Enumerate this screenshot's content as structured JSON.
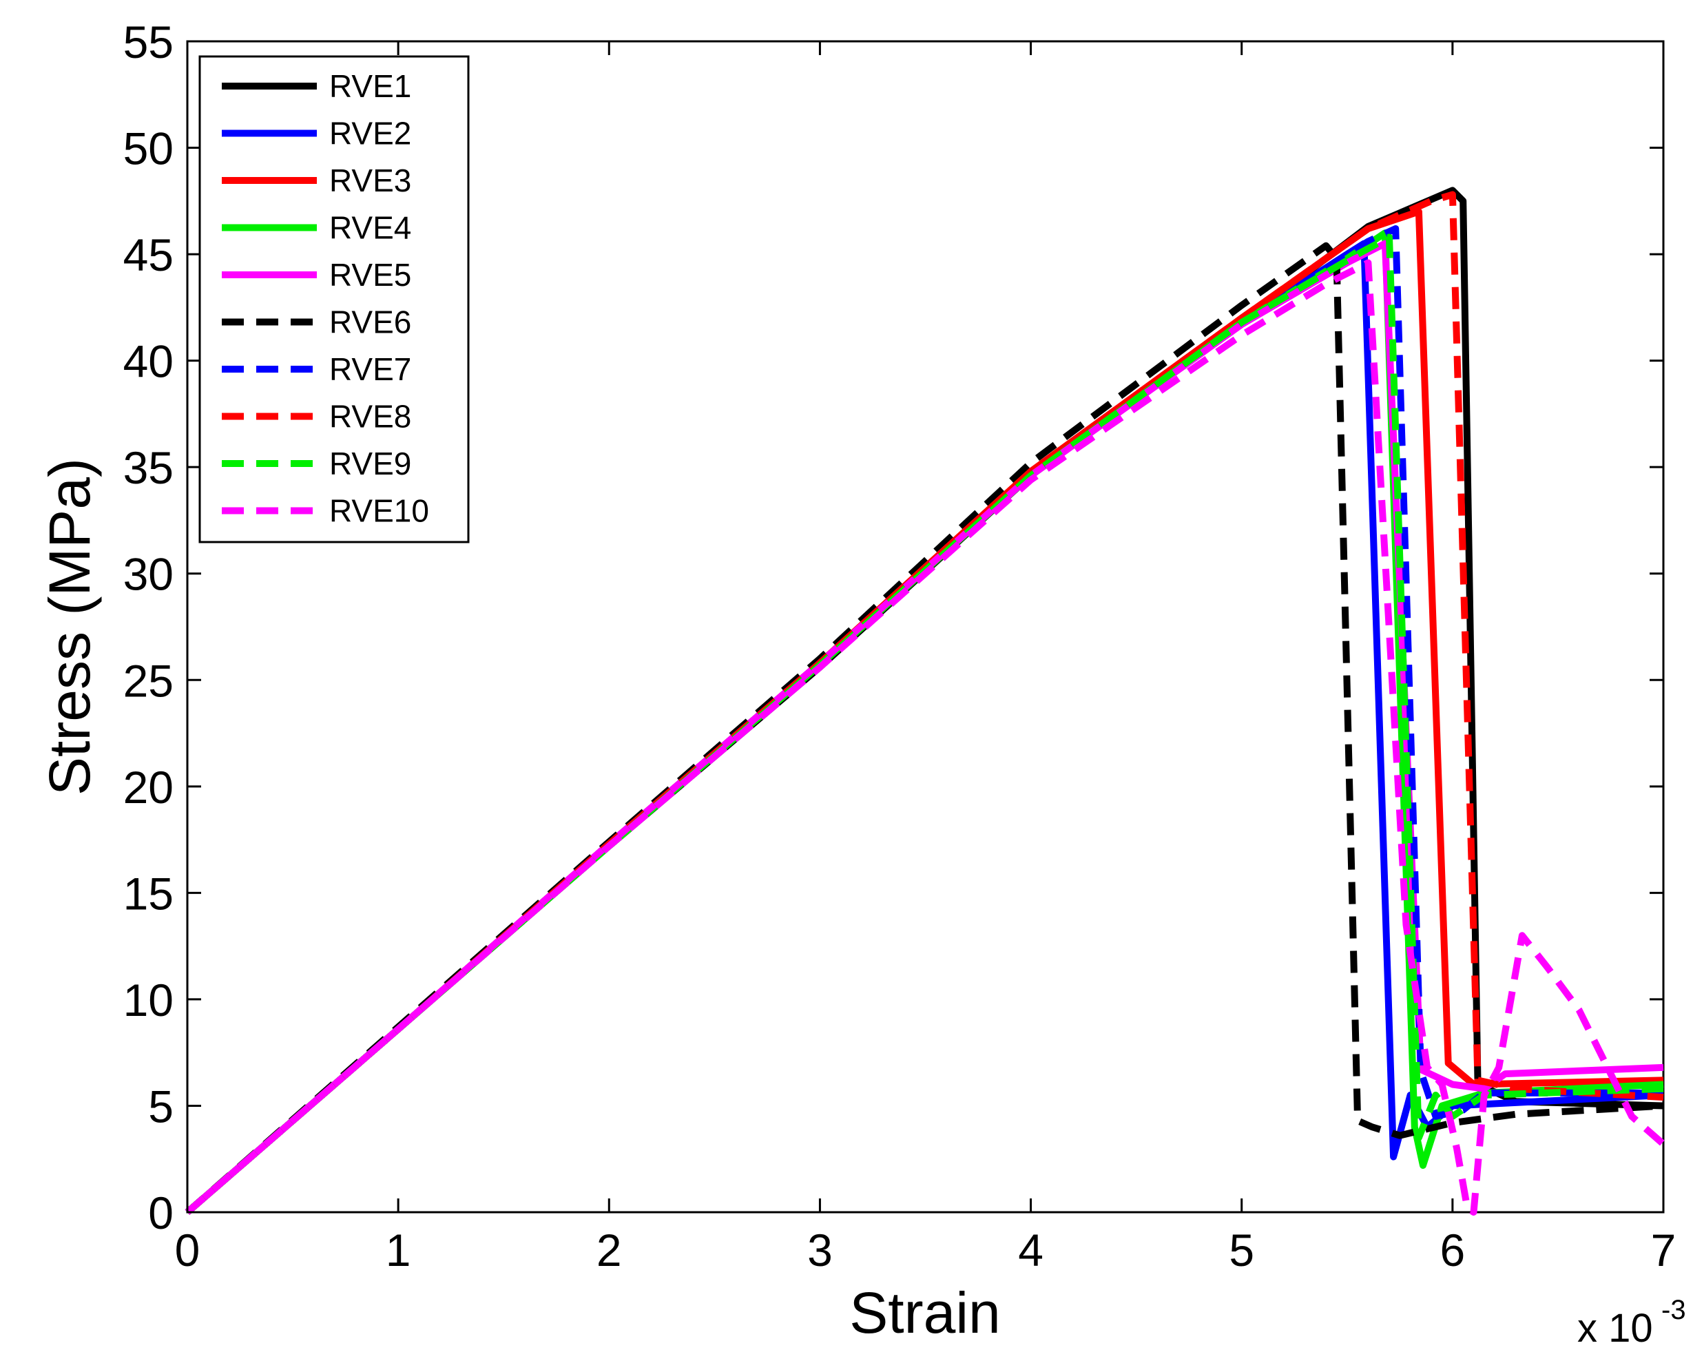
{
  "chart_data": {
    "type": "line",
    "title": "",
    "xlabel": "Strain",
    "ylabel": "Stress (MPa)",
    "x_multiplier_label": "x 10",
    "x_multiplier_exponent": "-3",
    "xlim": [
      0,
      7
    ],
    "ylim": [
      0,
      55
    ],
    "xticks": [
      0,
      1,
      2,
      3,
      4,
      5,
      6,
      7
    ],
    "yticks": [
      0,
      5,
      10,
      15,
      20,
      25,
      30,
      35,
      40,
      45,
      50,
      55
    ],
    "xtick_labels": [
      "0",
      "1",
      "2",
      "3",
      "4",
      "5",
      "6",
      "7"
    ],
    "ytick_labels": [
      "0",
      "5",
      "10",
      "15",
      "20",
      "25",
      "30",
      "35",
      "40",
      "45",
      "50",
      "55"
    ],
    "grid": false,
    "legend_position": "top-left",
    "series": [
      {
        "name": "RVE1",
        "color": "#000000",
        "dash": "solid",
        "points": [
          [
            0,
            0
          ],
          [
            1,
            8.6
          ],
          [
            2,
            17.2
          ],
          [
            3,
            25.6
          ],
          [
            4,
            34.6
          ],
          [
            5,
            41.8
          ],
          [
            5.6,
            46.3
          ],
          [
            6.0,
            48.0
          ],
          [
            6.05,
            47.5
          ],
          [
            6.12,
            6.0
          ],
          [
            6.3,
            5.2
          ],
          [
            7,
            5.0
          ]
        ]
      },
      {
        "name": "RVE2",
        "color": "#0000ff",
        "dash": "solid",
        "points": [
          [
            0,
            0
          ],
          [
            1,
            8.6
          ],
          [
            2,
            17.3
          ],
          [
            3,
            25.8
          ],
          [
            4,
            34.7
          ],
          [
            5,
            41.8
          ],
          [
            5.5,
            45.0
          ],
          [
            5.58,
            45.5
          ],
          [
            5.72,
            2.6
          ],
          [
            5.8,
            5.5
          ],
          [
            5.88,
            4.0
          ],
          [
            6.0,
            5.0
          ],
          [
            7,
            5.5
          ]
        ]
      },
      {
        "name": "RVE3",
        "color": "#ff0000",
        "dash": "solid",
        "points": [
          [
            0,
            0
          ],
          [
            1,
            8.6
          ],
          [
            2,
            17.3
          ],
          [
            3,
            25.8
          ],
          [
            4,
            34.8
          ],
          [
            5,
            42.0
          ],
          [
            5.6,
            46.2
          ],
          [
            5.84,
            47.0
          ],
          [
            5.98,
            7.0
          ],
          [
            6.1,
            6.0
          ],
          [
            7,
            6.2
          ]
        ]
      },
      {
        "name": "RVE4",
        "color": "#00ee00",
        "dash": "solid",
        "points": [
          [
            0,
            0
          ],
          [
            1,
            8.6
          ],
          [
            2,
            17.2
          ],
          [
            3,
            25.7
          ],
          [
            4,
            34.6
          ],
          [
            5,
            41.8
          ],
          [
            5.5,
            44.8
          ],
          [
            5.68,
            46.0
          ],
          [
            5.82,
            4.0
          ],
          [
            5.86,
            2.2
          ],
          [
            5.95,
            5.0
          ],
          [
            6.15,
            5.6
          ],
          [
            7,
            6.0
          ]
        ]
      },
      {
        "name": "RVE5",
        "color": "#ff00ff",
        "dash": "solid",
        "points": [
          [
            0,
            0
          ],
          [
            1,
            8.6
          ],
          [
            2,
            17.3
          ],
          [
            3,
            25.8
          ],
          [
            4,
            34.6
          ],
          [
            5,
            41.7
          ],
          [
            5.5,
            44.6
          ],
          [
            5.68,
            45.5
          ],
          [
            5.85,
            6.7
          ],
          [
            6.0,
            6.0
          ],
          [
            6.15,
            5.8
          ],
          [
            6.25,
            6.5
          ],
          [
            7,
            6.8
          ]
        ]
      },
      {
        "name": "RVE6",
        "color": "#000000",
        "dash": "dashed",
        "points": [
          [
            0,
            0
          ],
          [
            1,
            8.7
          ],
          [
            2,
            17.4
          ],
          [
            3,
            26.0
          ],
          [
            4,
            35.2
          ],
          [
            5,
            42.6
          ],
          [
            5.4,
            45.4
          ],
          [
            5.45,
            44.8
          ],
          [
            5.55,
            4.3
          ],
          [
            5.62,
            4.0
          ],
          [
            5.75,
            3.6
          ],
          [
            6.0,
            4.2
          ],
          [
            6.3,
            4.6
          ],
          [
            7,
            5.0
          ]
        ]
      },
      {
        "name": "RVE7",
        "color": "#0000ff",
        "dash": "dashed",
        "points": [
          [
            0,
            0
          ],
          [
            1,
            8.6
          ],
          [
            2,
            17.3
          ],
          [
            3,
            25.8
          ],
          [
            4,
            34.7
          ],
          [
            5,
            41.8
          ],
          [
            5.6,
            45.6
          ],
          [
            5.73,
            46.2
          ],
          [
            5.85,
            6.6
          ],
          [
            5.92,
            4.5
          ],
          [
            6.05,
            4.8
          ],
          [
            6.15,
            5.6
          ],
          [
            7,
            5.6
          ]
        ]
      },
      {
        "name": "RVE8",
        "color": "#ff0000",
        "dash": "dashed",
        "points": [
          [
            0,
            0
          ],
          [
            1,
            8.6
          ],
          [
            2,
            17.3
          ],
          [
            3,
            25.8
          ],
          [
            4,
            34.8
          ],
          [
            5,
            42.0
          ],
          [
            5.6,
            46.2
          ],
          [
            5.9,
            47.5
          ],
          [
            6.0,
            47.8
          ],
          [
            6.12,
            6.2
          ],
          [
            6.3,
            5.8
          ],
          [
            7,
            5.4
          ]
        ]
      },
      {
        "name": "RVE9",
        "color": "#00ee00",
        "dash": "dashed",
        "points": [
          [
            0,
            0
          ],
          [
            1,
            8.6
          ],
          [
            2,
            17.2
          ],
          [
            3,
            25.7
          ],
          [
            4,
            34.6
          ],
          [
            5,
            41.8
          ],
          [
            5.55,
            45.0
          ],
          [
            5.7,
            45.8
          ],
          [
            5.84,
            3.5
          ],
          [
            5.92,
            5.5
          ],
          [
            6.0,
            4.5
          ],
          [
            6.15,
            5.5
          ],
          [
            7,
            5.8
          ]
        ]
      },
      {
        "name": "RVE10",
        "color": "#ff00ff",
        "dash": "dashed",
        "points": [
          [
            0,
            0
          ],
          [
            1,
            8.6
          ],
          [
            2,
            17.2
          ],
          [
            3,
            25.6
          ],
          [
            4,
            34.4
          ],
          [
            5,
            41.2
          ],
          [
            5.4,
            43.6
          ],
          [
            5.6,
            44.6
          ],
          [
            5.78,
            13.5
          ],
          [
            5.88,
            6.8
          ],
          [
            5.95,
            6.0
          ],
          [
            6.02,
            3.0
          ],
          [
            6.07,
            0.2
          ],
          [
            6.1,
            0
          ],
          [
            6.15,
            5.5
          ],
          [
            6.22,
            6.8
          ],
          [
            6.33,
            13.0
          ],
          [
            6.45,
            11.5
          ],
          [
            6.6,
            9.5
          ],
          [
            6.75,
            6.5
          ],
          [
            6.85,
            4.5
          ],
          [
            7,
            3.2
          ]
        ]
      }
    ]
  }
}
